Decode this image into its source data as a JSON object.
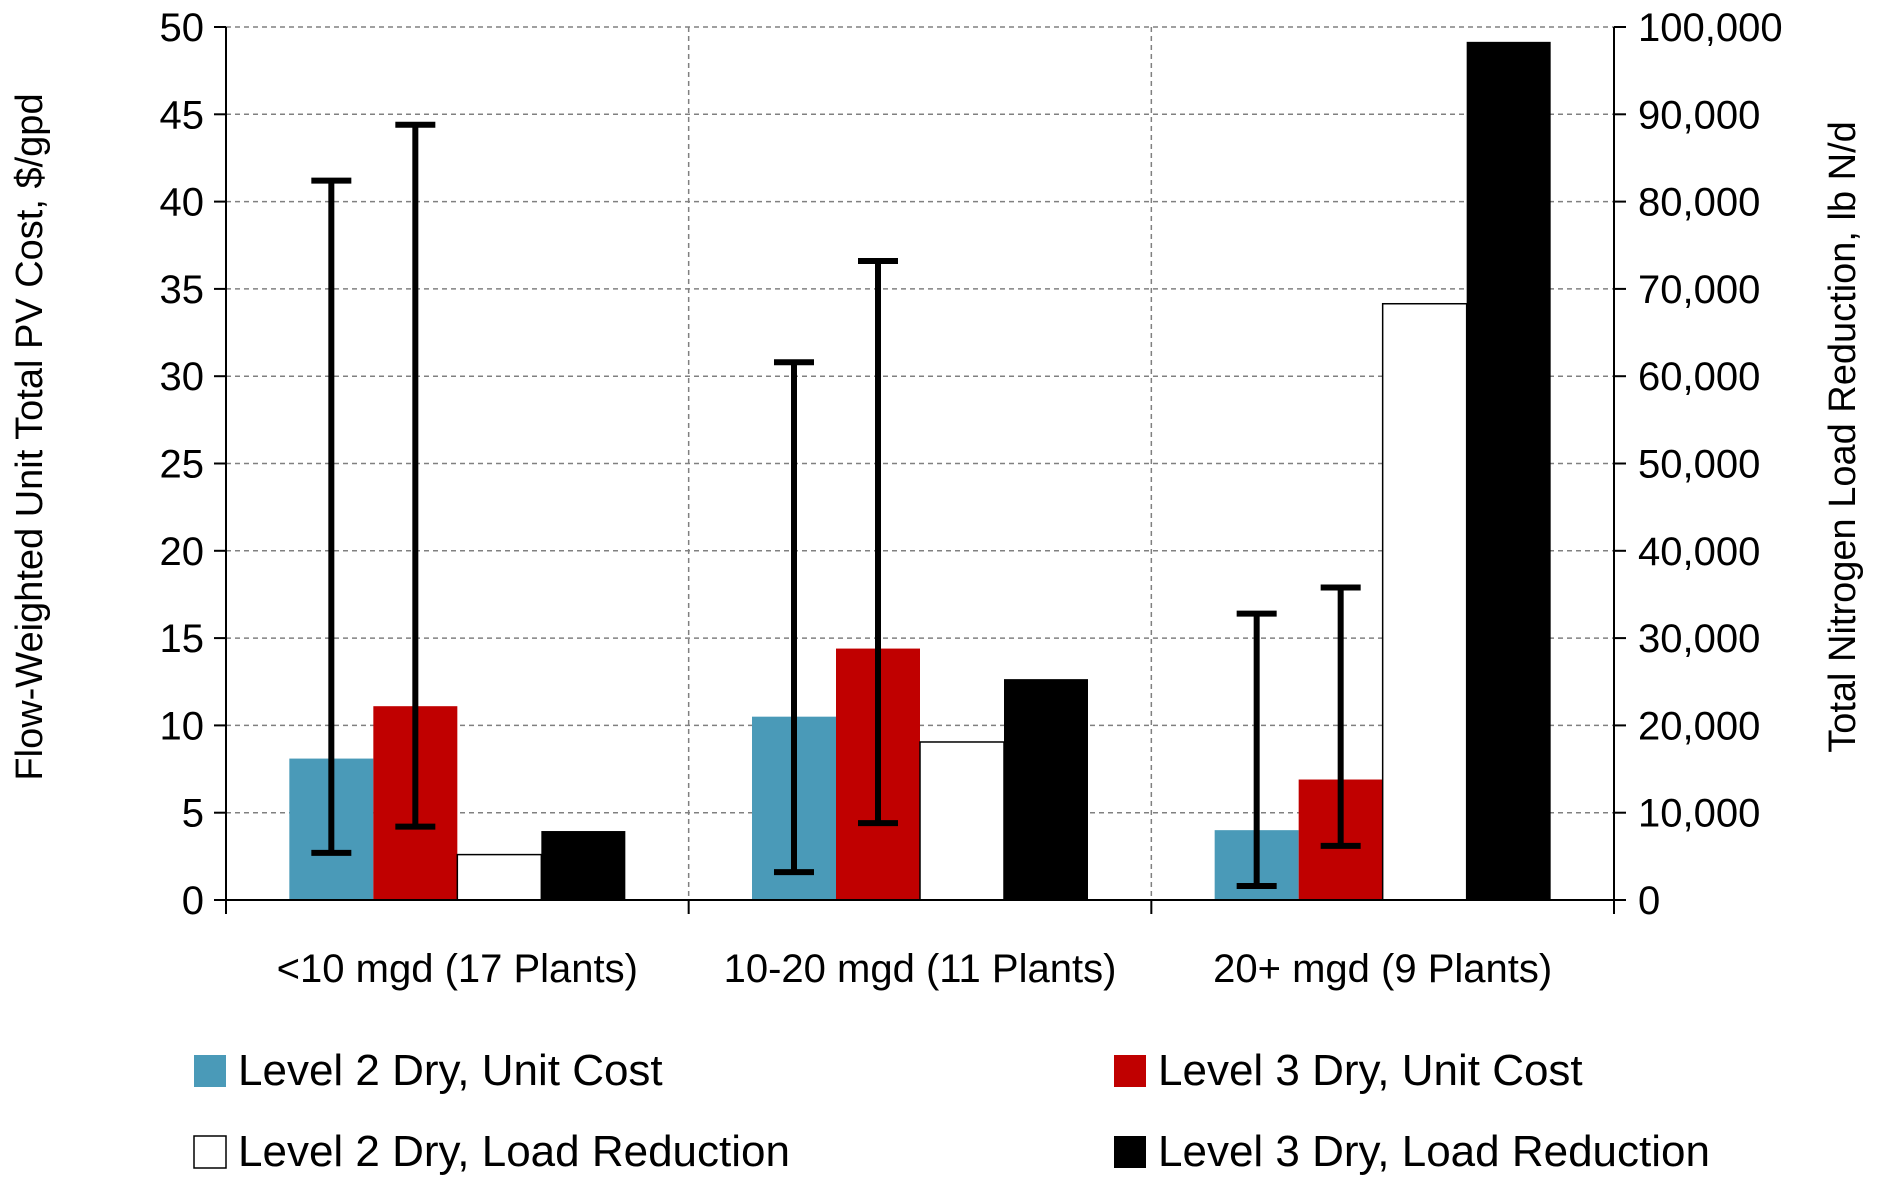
{
  "chart_data": {
    "type": "bar",
    "categories": [
      "<10 mgd (17 Plants)",
      "10-20 mgd (11 Plants)",
      "20+ mgd (9 Plants)"
    ],
    "ylabel": "Flow-Weighted Unit Total PV Cost, $/gpd",
    "y2label": "Total Nitrogen Load Reduction, lb N/d",
    "ylim": [
      0,
      50
    ],
    "y2lim": [
      0,
      100000
    ],
    "yticks": [
      "0",
      "5",
      "10",
      "15",
      "20",
      "25",
      "30",
      "35",
      "40",
      "45",
      "50"
    ],
    "y2ticks": [
      "0",
      "10,000",
      "20,000",
      "30,000",
      "40,000",
      "50,000",
      "60,000",
      "70,000",
      "80,000",
      "90,000",
      "100,000"
    ],
    "grid": "dashed",
    "series": [
      {
        "name": "Level 2 Dry, Unit Cost",
        "axis": "left",
        "color": "#4a9ab8",
        "values": [
          8.1,
          10.5,
          4.0
        ],
        "error_low": [
          2.7,
          1.6,
          0.8
        ],
        "error_high": [
          41.2,
          30.8,
          16.4
        ]
      },
      {
        "name": "Level 3 Dry, Unit Cost",
        "axis": "left",
        "color": "#c00000",
        "values": [
          11.1,
          14.4,
          6.9
        ],
        "error_low": [
          4.2,
          4.4,
          3.1
        ],
        "error_high": [
          44.4,
          36.6,
          17.9
        ]
      },
      {
        "name": "Level 2 Dry, Load Reduction",
        "axis": "right",
        "color": "#ffffff",
        "values": [
          5200,
          18100,
          68300
        ]
      },
      {
        "name": "Level 3 Dry, Load Reduction",
        "axis": "right",
        "color": "#000000",
        "values": [
          7900,
          25300,
          98300
        ]
      }
    ],
    "legend_position": "bottom"
  }
}
